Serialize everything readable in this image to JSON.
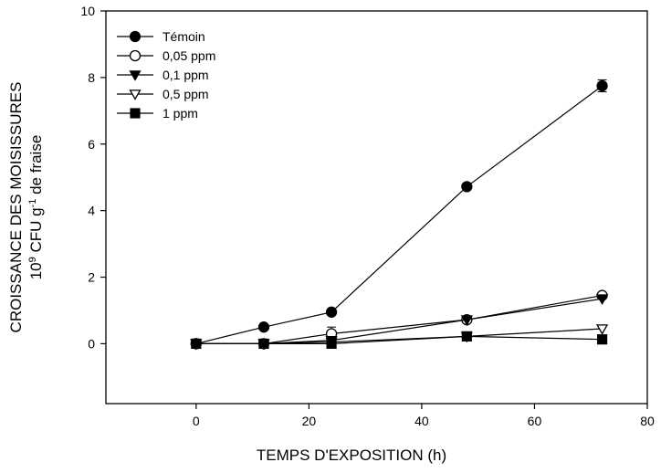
{
  "chart_data": {
    "type": "line",
    "title": "",
    "xlabel": "TEMPS D'EXPOSITION (h)",
    "ylabel_line1": "CROISSANCE DES MOISISSURES",
    "ylabel_line2": {
      "pre": "10",
      "exp": "9",
      "mid": " CFU g",
      "exp2": "-1",
      "post": " de fraise"
    },
    "xlim": [
      -16,
      80
    ],
    "ylim": [
      -1.8,
      10
    ],
    "xticks": [
      0,
      20,
      40,
      60,
      80
    ],
    "yticks": [
      0,
      2,
      4,
      6,
      8,
      10
    ],
    "grid": false,
    "legend_position": "top-left",
    "x": [
      0,
      12,
      24,
      48,
      72
    ],
    "series": [
      {
        "name": "Témoin",
        "marker": "circle-filled",
        "values": [
          0,
          0.5,
          0.95,
          4.72,
          7.75
        ],
        "errors": [
          0.03,
          0.04,
          0.06,
          0.1,
          0.18
        ]
      },
      {
        "name": "0,05 ppm",
        "marker": "circle-open",
        "values": [
          0,
          0,
          0.3,
          0.72,
          1.45
        ],
        "errors": [
          0.03,
          0.03,
          0.2,
          0.06,
          0.07
        ]
      },
      {
        "name": "0,1 ppm",
        "marker": "triangle-down-filled",
        "values": [
          0,
          0,
          0.1,
          0.72,
          1.35
        ],
        "errors": [
          0.03,
          0.03,
          0.05,
          0.06,
          0.07
        ]
      },
      {
        "name": "0,5 ppm",
        "marker": "triangle-down-open",
        "values": [
          0,
          0,
          0.05,
          0.22,
          0.45
        ],
        "errors": [
          0.02,
          0.02,
          0.03,
          0.04,
          0.04
        ]
      },
      {
        "name": "1 ppm",
        "marker": "square-filled",
        "values": [
          0,
          0,
          0,
          0.22,
          0.13
        ],
        "errors": [
          0.02,
          0.02,
          0.02,
          0.03,
          0.03
        ]
      }
    ]
  }
}
